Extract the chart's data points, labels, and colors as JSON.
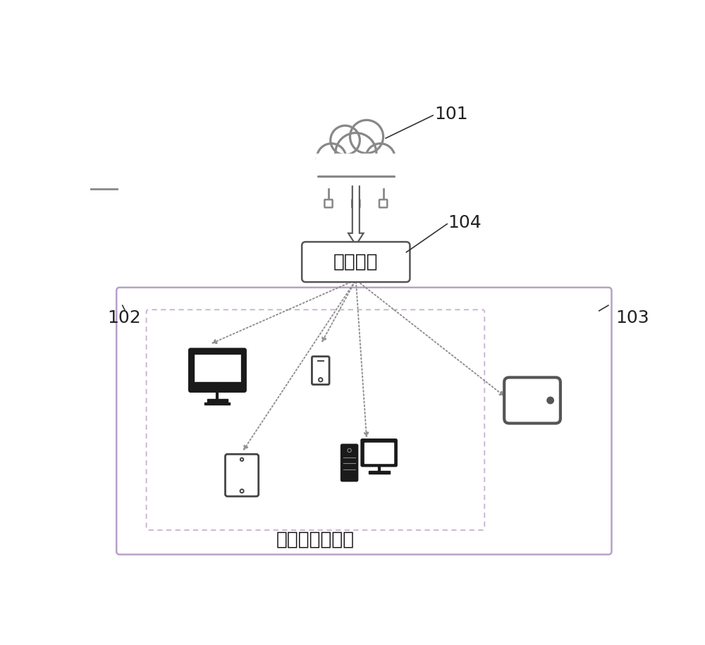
{
  "bg_color": "#ffffff",
  "label_101": "101",
  "label_102": "102",
  "label_103": "103",
  "label_104": "104",
  "text_edge_device": "边缘设备",
  "text_iot": "物联网（局徟）",
  "cloud_color": "#888888",
  "cloud_fill": "#ffffff",
  "outer_box_edge": "#b8a0c8",
  "outer_box_fill": "#ffffff",
  "inner_box_edge": "#c8b0d0",
  "device_dark": "#1a1a1a",
  "device_mid": "#555555",
  "arrow_dot_color": "#909090",
  "label_line_color": "#333333",
  "figure_width": 10.0,
  "figure_height": 9.15,
  "dpi": 100
}
